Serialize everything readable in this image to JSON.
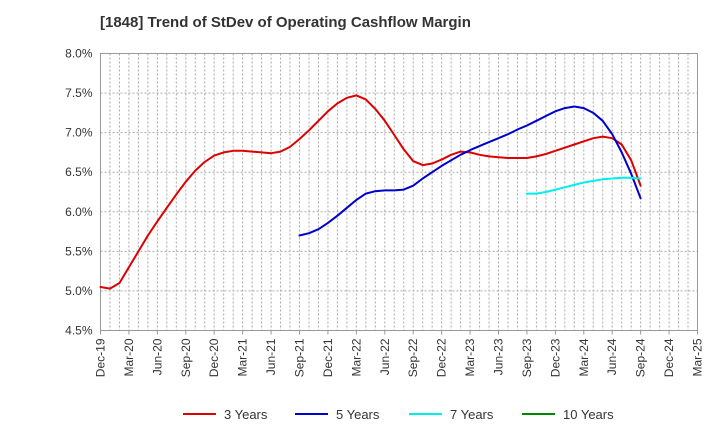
{
  "chart_data": {
    "type": "line",
    "title": "[1848]  Trend of StDev of Operating Cashflow Margin",
    "xlabel": "",
    "ylabel": "",
    "x_ticks": [
      "Dec-19",
      "Mar-20",
      "Jun-20",
      "Sep-20",
      "Dec-20",
      "Mar-21",
      "Jun-21",
      "Sep-21",
      "Dec-21",
      "Mar-22",
      "Jun-22",
      "Sep-22",
      "Dec-22",
      "Mar-23",
      "Jun-23",
      "Sep-23",
      "Dec-23",
      "Mar-24",
      "Jun-24",
      "Sep-24",
      "Dec-24",
      "Mar-25"
    ],
    "ylim": [
      4.5,
      8.0
    ],
    "y_ticks": [
      "4.5%",
      "5.0%",
      "5.5%",
      "6.0%",
      "6.5%",
      "7.0%",
      "7.5%",
      "8.0%"
    ],
    "grid": true,
    "legend_position": "bottom",
    "series": [
      {
        "name": "3 Years",
        "color": "#dd0000",
        "points": [
          [
            "Dec-19",
            5.05
          ],
          [
            "Jan-20",
            5.03
          ],
          [
            "Feb-20",
            5.1
          ],
          [
            "Mar-20",
            5.3
          ],
          [
            "Apr-20",
            5.5
          ],
          [
            "May-20",
            5.7
          ],
          [
            "Jun-20",
            5.88
          ],
          [
            "Jul-20",
            6.05
          ],
          [
            "Aug-20",
            6.22
          ],
          [
            "Sep-20",
            6.38
          ],
          [
            "Oct-20",
            6.52
          ],
          [
            "Nov-20",
            6.63
          ],
          [
            "Dec-20",
            6.71
          ],
          [
            "Jan-21",
            6.75
          ],
          [
            "Feb-21",
            6.77
          ],
          [
            "Mar-21",
            6.77
          ],
          [
            "Apr-21",
            6.76
          ],
          [
            "May-21",
            6.75
          ],
          [
            "Jun-21",
            6.74
          ],
          [
            "Jul-21",
            6.76
          ],
          [
            "Aug-21",
            6.82
          ],
          [
            "Sep-21",
            6.92
          ],
          [
            "Oct-21",
            7.03
          ],
          [
            "Nov-21",
            7.15
          ],
          [
            "Dec-21",
            7.27
          ],
          [
            "Jan-22",
            7.37
          ],
          [
            "Feb-22",
            7.44
          ],
          [
            "Mar-22",
            7.47
          ],
          [
            "Apr-22",
            7.42
          ],
          [
            "May-22",
            7.3
          ],
          [
            "Jun-22",
            7.15
          ],
          [
            "Jul-22",
            6.97
          ],
          [
            "Aug-22",
            6.79
          ],
          [
            "Sep-22",
            6.64
          ],
          [
            "Oct-22",
            6.59
          ],
          [
            "Nov-22",
            6.61
          ],
          [
            "Dec-22",
            6.66
          ],
          [
            "Jan-23",
            6.72
          ],
          [
            "Feb-23",
            6.76
          ],
          [
            "Mar-23",
            6.75
          ],
          [
            "Apr-23",
            6.72
          ],
          [
            "May-23",
            6.7
          ],
          [
            "Jun-23",
            6.69
          ],
          [
            "Jul-23",
            6.68
          ],
          [
            "Aug-23",
            6.68
          ],
          [
            "Sep-23",
            6.68
          ],
          [
            "Oct-23",
            6.7
          ],
          [
            "Nov-23",
            6.73
          ],
          [
            "Dec-23",
            6.77
          ],
          [
            "Jan-24",
            6.81
          ],
          [
            "Feb-24",
            6.85
          ],
          [
            "Mar-24",
            6.89
          ],
          [
            "Apr-24",
            6.93
          ],
          [
            "May-24",
            6.95
          ],
          [
            "Jun-24",
            6.93
          ],
          [
            "Jul-24",
            6.85
          ],
          [
            "Aug-24",
            6.65
          ],
          [
            "Sep-24",
            6.33
          ]
        ]
      },
      {
        "name": "5 Years",
        "color": "#0000cc",
        "points": [
          [
            "Sep-21",
            5.7
          ],
          [
            "Oct-21",
            5.73
          ],
          [
            "Nov-21",
            5.78
          ],
          [
            "Dec-21",
            5.86
          ],
          [
            "Jan-22",
            5.95
          ],
          [
            "Feb-22",
            6.05
          ],
          [
            "Mar-22",
            6.15
          ],
          [
            "Apr-22",
            6.23
          ],
          [
            "May-22",
            6.26
          ],
          [
            "Jun-22",
            6.27
          ],
          [
            "Jul-22",
            6.27
          ],
          [
            "Aug-22",
            6.28
          ],
          [
            "Sep-22",
            6.33
          ],
          [
            "Oct-22",
            6.42
          ],
          [
            "Nov-22",
            6.5
          ],
          [
            "Dec-22",
            6.58
          ],
          [
            "Jan-23",
            6.65
          ],
          [
            "Feb-23",
            6.72
          ],
          [
            "Mar-23",
            6.78
          ],
          [
            "Apr-23",
            6.83
          ],
          [
            "May-23",
            6.88
          ],
          [
            "Jun-23",
            6.93
          ],
          [
            "Jul-23",
            6.98
          ],
          [
            "Aug-23",
            7.04
          ],
          [
            "Sep-23",
            7.09
          ],
          [
            "Oct-23",
            7.15
          ],
          [
            "Nov-23",
            7.21
          ],
          [
            "Dec-23",
            7.27
          ],
          [
            "Jan-24",
            7.31
          ],
          [
            "Feb-24",
            7.33
          ],
          [
            "Mar-24",
            7.31
          ],
          [
            "Apr-24",
            7.25
          ],
          [
            "May-24",
            7.15
          ],
          [
            "Jun-24",
            6.98
          ],
          [
            "Jul-24",
            6.75
          ],
          [
            "Aug-24",
            6.48
          ],
          [
            "Sep-24",
            6.17
          ]
        ]
      },
      {
        "name": "7 Years",
        "color": "#00eeee",
        "points": [
          [
            "Sep-23",
            6.23
          ],
          [
            "Oct-23",
            6.23
          ],
          [
            "Nov-23",
            6.25
          ],
          [
            "Dec-23",
            6.28
          ],
          [
            "Jan-24",
            6.31
          ],
          [
            "Feb-24",
            6.34
          ],
          [
            "Mar-24",
            6.37
          ],
          [
            "Apr-24",
            6.39
          ],
          [
            "May-24",
            6.41
          ],
          [
            "Jun-24",
            6.42
          ],
          [
            "Jul-24",
            6.43
          ],
          [
            "Aug-24",
            6.43
          ],
          [
            "Sep-24",
            6.42
          ]
        ]
      },
      {
        "name": "10 Years",
        "color": "#008800",
        "points": []
      }
    ]
  }
}
